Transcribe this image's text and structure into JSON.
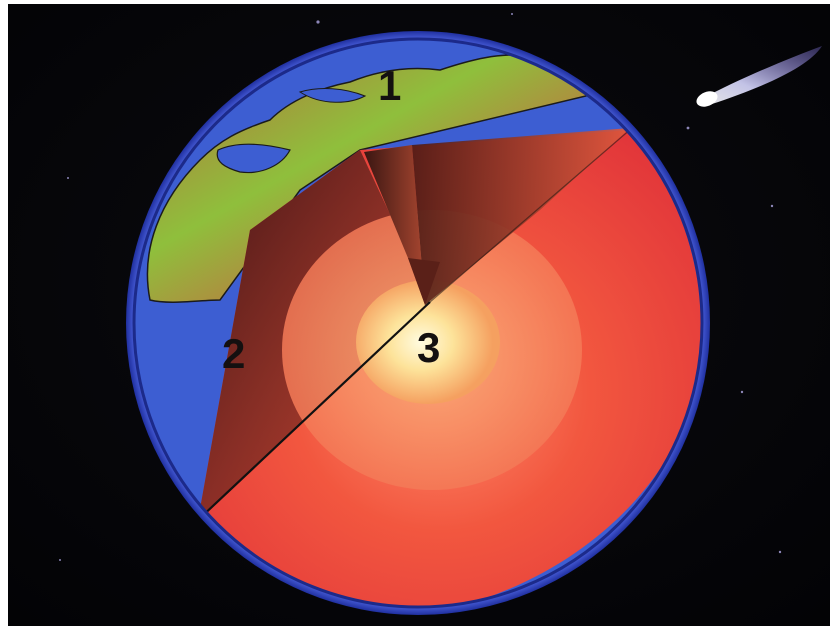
{
  "diagram": {
    "labels": {
      "crust": "1",
      "mantle": "2",
      "core": "3"
    },
    "colors": {
      "space": "#050507",
      "atmosphere": "#3a56d8",
      "ocean": "#3f60d4",
      "land_green": "#7fbf3a",
      "land_brown": "#b9673c",
      "mantle_outer": "#e8473c",
      "mantle_inner": "#f36a50",
      "outer_core": "#f79868",
      "inner_core": "#fff6b8",
      "comet": "#c8c8ff"
    },
    "icons": {
      "comet": "comet-icon",
      "stars": "star-icon"
    }
  }
}
